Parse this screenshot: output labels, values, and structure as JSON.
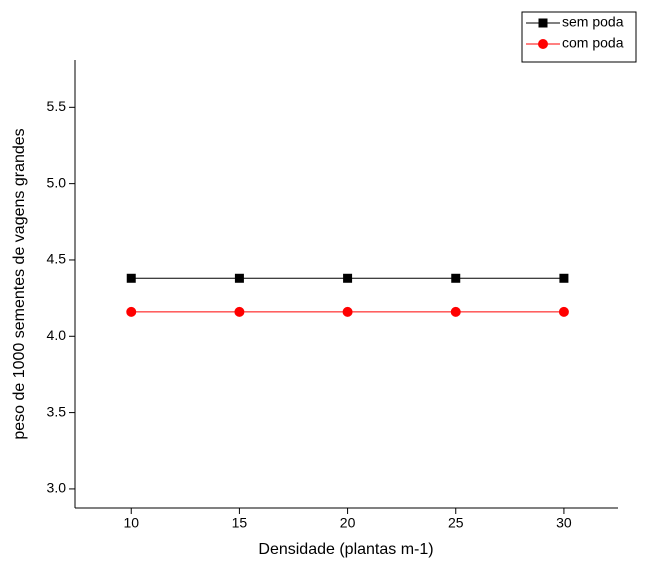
{
  "chart_data": {
    "type": "line",
    "x_label": "Densidade (plantas m-1)",
    "y_label": "peso de 1000 sementes de vagens grandes",
    "x": [
      10,
      15,
      20,
      25,
      30
    ],
    "series": [
      {
        "name": "sem poda",
        "color": "#000000",
        "marker": "square",
        "values": [
          4.38,
          4.38,
          4.38,
          4.38,
          4.38
        ]
      },
      {
        "name": "com poda",
        "color": "#ff0000",
        "marker": "circle",
        "values": [
          4.16,
          4.16,
          4.16,
          4.16,
          4.16
        ]
      }
    ],
    "xlim": [
      7.4,
      32.5
    ],
    "xticks": [
      10,
      15,
      20,
      25,
      30
    ],
    "ylim": [
      2.875,
      5.81
    ],
    "yticks": [
      {
        "value": 3,
        "label": "3.0"
      },
      3.5,
      {
        "value": 4,
        "label": "4.0"
      },
      4.5,
      {
        "value": 5,
        "label": "5.0"
      },
      5.5
    ],
    "legend": "upper-right"
  }
}
